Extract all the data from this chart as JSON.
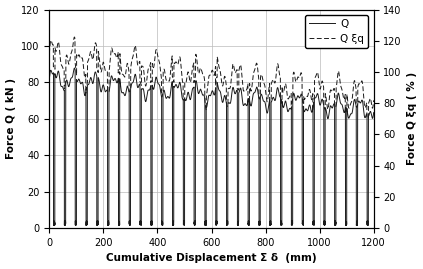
{
  "title": "",
  "xlabel": "Cumulative Displacement Σ δ  (mm)",
  "ylabel_left": "Force Q ( kN )",
  "ylabel_right": "Force Q ξq ( % )",
  "xlim": [
    0,
    1200
  ],
  "ylim_left": [
    0,
    120
  ],
  "ylim_right": [
    0,
    140
  ],
  "xticks": [
    0,
    200,
    400,
    600,
    800,
    1000,
    1200
  ],
  "yticks_left": [
    0,
    20,
    40,
    60,
    80,
    100,
    120
  ],
  "yticks_right": [
    0,
    20,
    40,
    60,
    80,
    100,
    120,
    140
  ],
  "legend_Q": "Q",
  "legend_Xiq": "Q ξq",
  "line_color": "#1a1a1a",
  "background_color": "#ffffff",
  "grid_color": "#bbbbbb"
}
